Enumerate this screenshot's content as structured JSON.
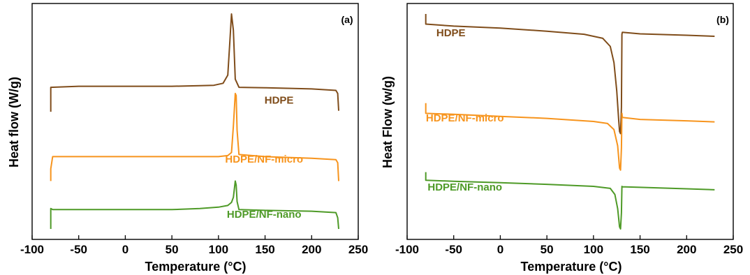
{
  "chart_data": [
    {
      "type": "line",
      "panel_label": "(a)",
      "xlabel": "Temperature (°C)",
      "ylabel": "Heat flow (W/g)",
      "xlim": [
        -100,
        250
      ],
      "x_ticks": [
        "-100",
        "-50",
        "0",
        "50",
        "100",
        "150",
        "200",
        "250"
      ],
      "y_tick_labels": false,
      "grid": false,
      "legend": "none (series labelled inline)",
      "series": [
        {
          "name": "HDPE",
          "color": "#7F4C1A",
          "label_anchor": [
            165,
            0.56
          ],
          "points": [
            [
              -80,
              0.52
            ],
            [
              -80,
              0.64
            ],
            [
              -50,
              0.645
            ],
            [
              0,
              0.645
            ],
            [
              50,
              0.645
            ],
            [
              80,
              0.648
            ],
            [
              95,
              0.65
            ],
            [
              105,
              0.66
            ],
            [
              110,
              0.7
            ],
            [
              112,
              0.85
            ],
            [
              114,
              1.0
            ],
            [
              116,
              0.92
            ],
            [
              118,
              0.68
            ],
            [
              122,
              0.64
            ],
            [
              150,
              0.638
            ],
            [
              200,
              0.632
            ],
            [
              226,
              0.625
            ],
            [
              228,
              0.61
            ],
            [
              229,
              0.525
            ]
          ]
        },
        {
          "name": "HDPE/NF-micro",
          "color": "#F7941D",
          "label_anchor": [
            149,
            0.27
          ],
          "points": [
            [
              -80,
              0.18
            ],
            [
              -80,
              0.24
            ],
            [
              -78,
              0.3
            ],
            [
              -50,
              0.3
            ],
            [
              0,
              0.3
            ],
            [
              50,
              0.3
            ],
            [
              100,
              0.3
            ],
            [
              110,
              0.305
            ],
            [
              114,
              0.32
            ],
            [
              116,
              0.45
            ],
            [
              118,
              0.61
            ],
            [
              119,
              0.6
            ],
            [
              120,
              0.43
            ],
            [
              122,
              0.31
            ],
            [
              150,
              0.3
            ],
            [
              200,
              0.292
            ],
            [
              226,
              0.285
            ],
            [
              228,
              0.27
            ],
            [
              229,
              0.18
            ]
          ]
        },
        {
          "name": "HDPE/NF-nano",
          "color": "#4E9A27",
          "label_anchor": [
            149,
            0.0
          ],
          "points": [
            [
              -80,
              -0.055
            ],
            [
              -80,
              0.045
            ],
            [
              -78,
              0.04
            ],
            [
              -50,
              0.04
            ],
            [
              0,
              0.04
            ],
            [
              50,
              0.04
            ],
            [
              80,
              0.045
            ],
            [
              100,
              0.052
            ],
            [
              110,
              0.06
            ],
            [
              114,
              0.075
            ],
            [
              116,
              0.1
            ],
            [
              118,
              0.18
            ],
            [
              119,
              0.16
            ],
            [
              120,
              0.08
            ],
            [
              122,
              0.04
            ],
            [
              150,
              0.036
            ],
            [
              200,
              0.032
            ],
            [
              226,
              0.025
            ],
            [
              228,
              0.0
            ],
            [
              229,
              -0.055
            ]
          ]
        }
      ]
    },
    {
      "type": "line",
      "panel_label": "(b)",
      "xlabel": "Temperature (°C)",
      "ylabel": "Heat Flow (w/g)",
      "xlim": [
        -100,
        250
      ],
      "x_ticks": [
        "-100",
        "-50",
        "0",
        "50",
        "100",
        "150",
        "200",
        "250"
      ],
      "y_tick_labels": false,
      "grid": false,
      "legend": "none (series labelled inline)",
      "series": [
        {
          "name": "HDPE",
          "color": "#7F4C1A",
          "label_anchor": [
            -53,
            0.85
          ],
          "points": [
            [
              -80,
              0.96
            ],
            [
              -80,
              0.91
            ],
            [
              -50,
              0.9
            ],
            [
              0,
              0.89
            ],
            [
              50,
              0.875
            ],
            [
              90,
              0.86
            ],
            [
              110,
              0.84
            ],
            [
              118,
              0.8
            ],
            [
              122,
              0.72
            ],
            [
              125,
              0.58
            ],
            [
              127,
              0.44
            ],
            [
              128,
              0.38
            ],
            [
              129,
              0.37
            ],
            [
              130,
              0.5
            ],
            [
              130.5,
              0.86
            ],
            [
              131,
              0.87
            ],
            [
              150,
              0.862
            ],
            [
              200,
              0.855
            ],
            [
              230,
              0.85
            ]
          ]
        },
        {
          "name": "HDPE/NF-micro",
          "color": "#F7941D",
          "label_anchor": [
            -38,
            0.43
          ],
          "points": [
            [
              -80,
              0.52
            ],
            [
              -80,
              0.47
            ],
            [
              -50,
              0.465
            ],
            [
              0,
              0.455
            ],
            [
              50,
              0.445
            ],
            [
              100,
              0.43
            ],
            [
              115,
              0.42
            ],
            [
              122,
              0.39
            ],
            [
              126,
              0.31
            ],
            [
              128,
              0.2
            ],
            [
              129,
              0.19
            ],
            [
              130,
              0.3
            ],
            [
              130.5,
              0.47
            ],
            [
              131,
              0.45
            ],
            [
              150,
              0.44
            ],
            [
              200,
              0.433
            ],
            [
              230,
              0.428
            ]
          ]
        },
        {
          "name": "HDPE/NF-nano",
          "color": "#4E9A27",
          "label_anchor": [
            -38,
            0.09
          ],
          "points": [
            [
              -80,
              0.18
            ],
            [
              -80,
              0.14
            ],
            [
              -50,
              0.135
            ],
            [
              0,
              0.128
            ],
            [
              50,
              0.12
            ],
            [
              100,
              0.11
            ],
            [
              118,
              0.1
            ],
            [
              123,
              0.07
            ],
            [
              126,
              0.0
            ],
            [
              128,
              -0.09
            ],
            [
              129,
              -0.1
            ],
            [
              130,
              -0.02
            ],
            [
              130.5,
              0.11
            ],
            [
              131,
              0.108
            ],
            [
              150,
              0.105
            ],
            [
              200,
              0.098
            ],
            [
              230,
              0.093
            ]
          ]
        }
      ]
    }
  ]
}
